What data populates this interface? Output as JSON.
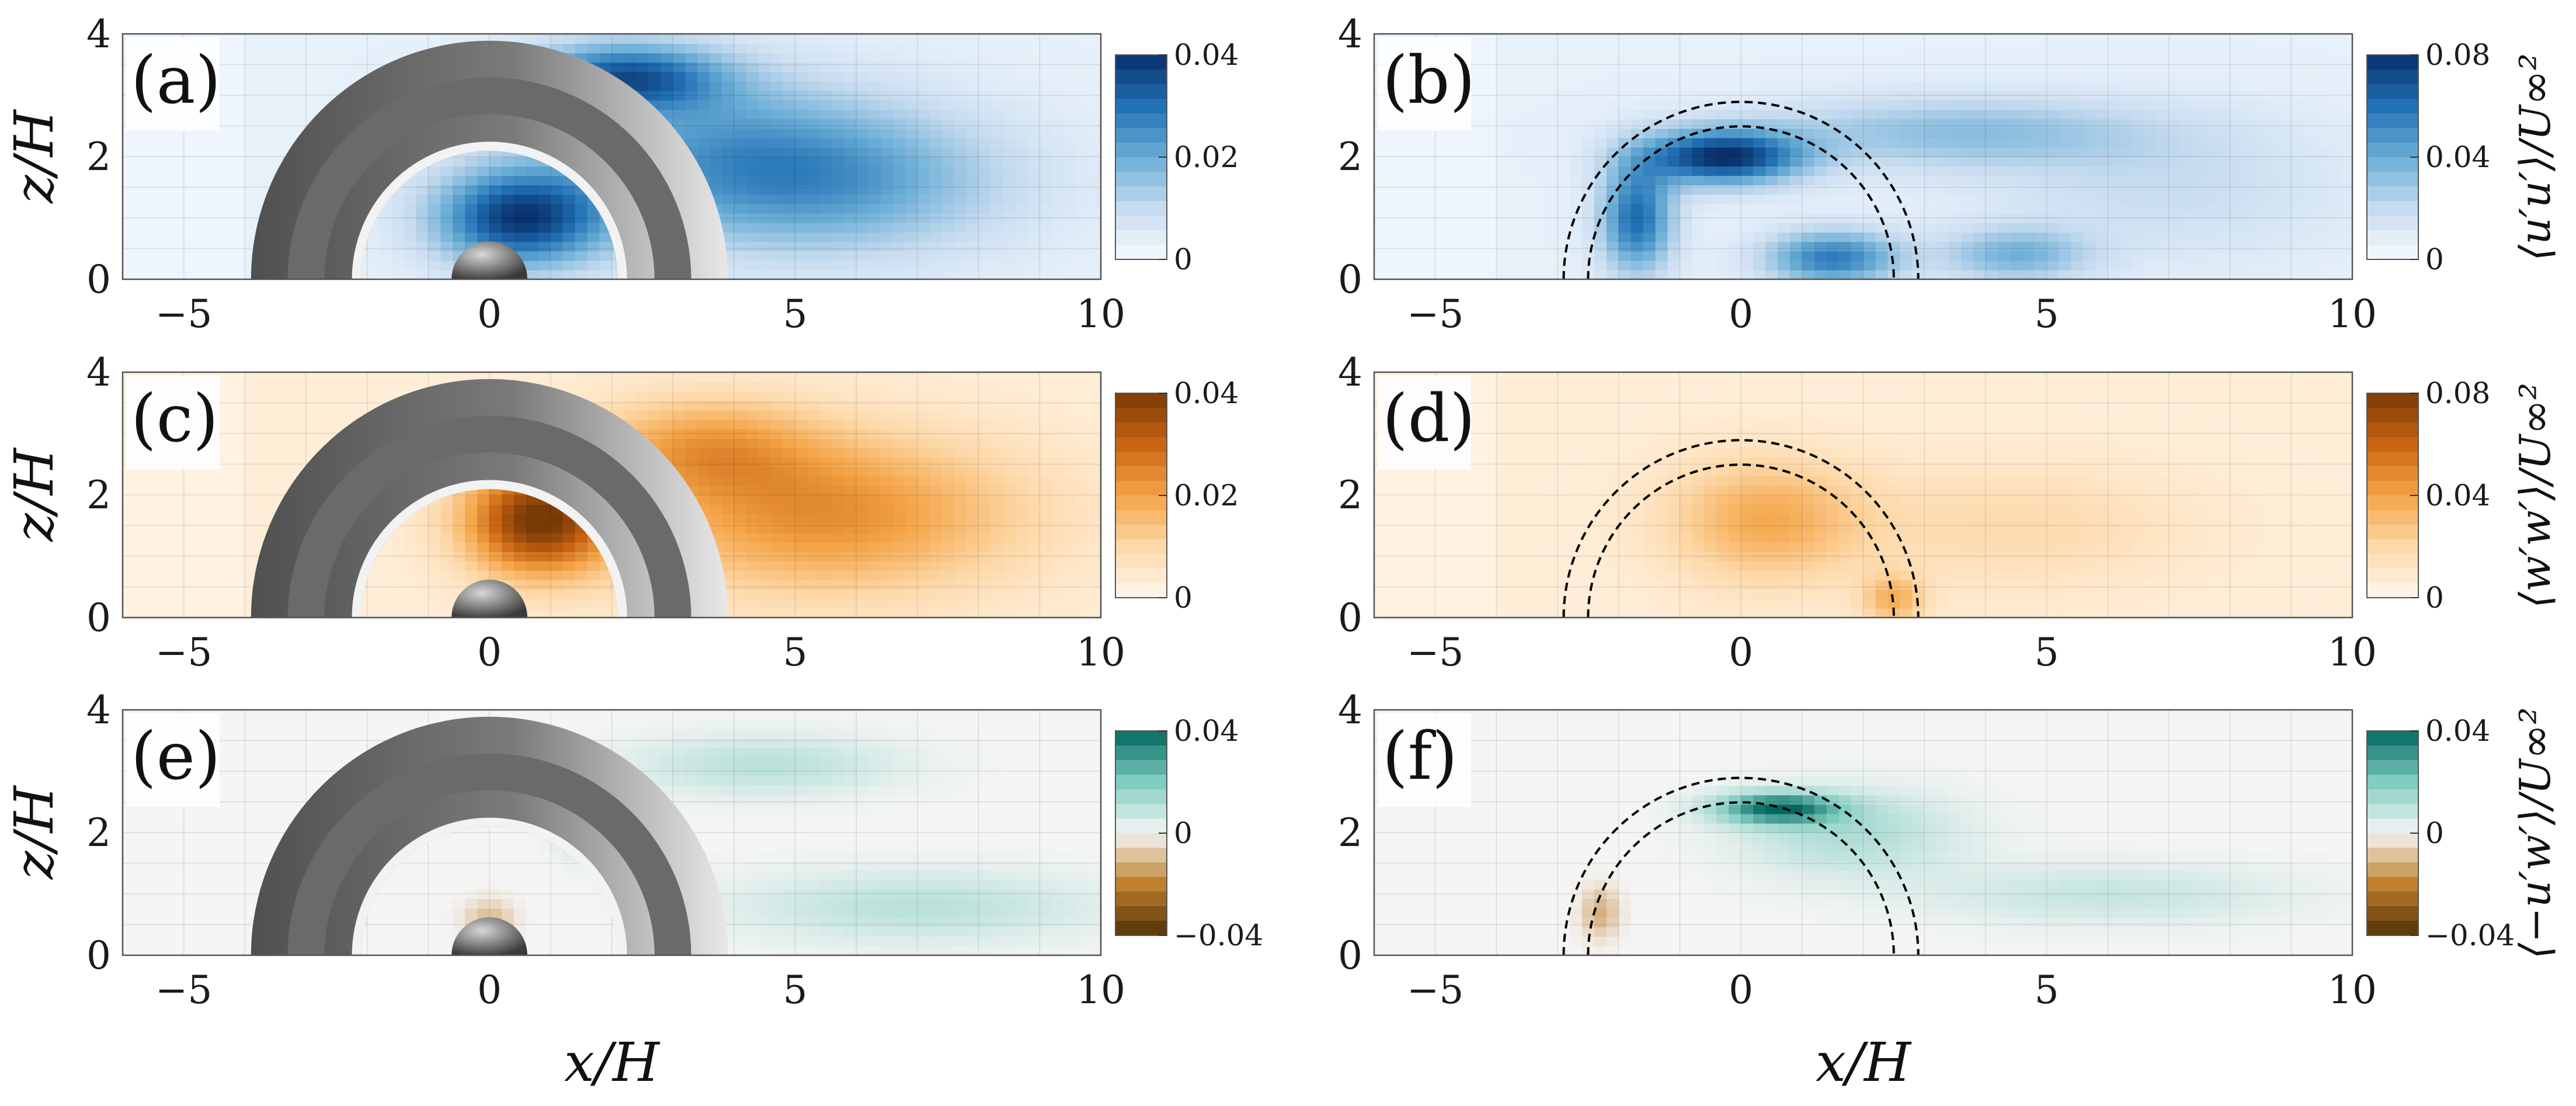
{
  "chart_data": [
    {
      "id": "a",
      "type": "heatmap",
      "panel_label": "(a)",
      "colormap": "blues",
      "model": "rotor",
      "xlim": [
        -6,
        10
      ],
      "ylim": [
        0,
        4
      ],
      "xticks": [
        "−5",
        "0",
        "5",
        "10"
      ],
      "yticks": [
        "0",
        "2",
        "4"
      ],
      "ylabel": "z/H",
      "xlabel": "",
      "colorbar": {
        "ticks": [
          "0.04",
          "0.02",
          "0"
        ],
        "label": ""
      },
      "regions": [
        {
          "cx": 0.5,
          "cz": 1.0,
          "sx": 1.4,
          "sz": 0.8,
          "v": 0.034
        },
        {
          "cx": 2.2,
          "cz": 3.3,
          "sx": 1.6,
          "sz": 0.55,
          "v": 0.028
        },
        {
          "cx": 5.5,
          "cz": 1.6,
          "sx": 3.0,
          "sz": 1.2,
          "v": 0.018
        },
        {
          "cx": 3.5,
          "cz": 2.2,
          "sx": 2.8,
          "sz": 1.3,
          "v": 0.012
        }
      ]
    },
    {
      "id": "b",
      "type": "heatmap",
      "panel_label": "(b)",
      "colormap": "blues",
      "model": "rings",
      "xlim": [
        -6,
        10
      ],
      "ylim": [
        0,
        4
      ],
      "xticks": [
        "−5",
        "0",
        "5",
        "10"
      ],
      "yticks": [
        "0",
        "2",
        "4"
      ],
      "ylabel": "",
      "xlabel": "",
      "colorbar": {
        "ticks": [
          "0.08",
          "0.04",
          "0"
        ],
        "label": "⟨u′u′⟩/U∞²"
      },
      "regions": [
        {
          "cx": -0.3,
          "cz": 2.0,
          "sx": 1.3,
          "sz": 0.45,
          "v": 0.072
        },
        {
          "cx": -1.7,
          "cz": 1.0,
          "sx": 0.6,
          "sz": 0.9,
          "v": 0.055
        },
        {
          "cx": 1.5,
          "cz": 0.35,
          "sx": 1.1,
          "sz": 0.45,
          "v": 0.05
        },
        {
          "cx": 4.5,
          "cz": 0.4,
          "sx": 1.2,
          "sz": 0.45,
          "v": 0.03
        },
        {
          "cx": 3.5,
          "cz": 2.4,
          "sx": 3.2,
          "sz": 0.6,
          "v": 0.025
        },
        {
          "cx": 7.0,
          "cz": 1.5,
          "sx": 3.0,
          "sz": 1.2,
          "v": 0.012
        }
      ]
    },
    {
      "id": "c",
      "type": "heatmap",
      "panel_label": "(c)",
      "colormap": "oranges",
      "model": "rotor",
      "xlim": [
        -6,
        10
      ],
      "ylim": [
        0,
        4
      ],
      "xticks": [
        "−5",
        "0",
        "5",
        "10"
      ],
      "yticks": [
        "0",
        "2",
        "4"
      ],
      "ylabel": "z/H",
      "xlabel": "",
      "colorbar": {
        "ticks": [
          "0.04",
          "0.02",
          "0"
        ],
        "label": ""
      },
      "regions": [
        {
          "cx": 0.8,
          "cz": 1.6,
          "sx": 1.2,
          "sz": 0.9,
          "v": 0.036
        },
        {
          "cx": 5.5,
          "cz": 1.7,
          "sx": 3.2,
          "sz": 1.3,
          "v": 0.02
        },
        {
          "cx": 3.5,
          "cz": 2.8,
          "sx": 1.8,
          "sz": 0.8,
          "v": 0.014
        }
      ]
    },
    {
      "id": "d",
      "type": "heatmap",
      "panel_label": "(d)",
      "colormap": "oranges",
      "model": "rings",
      "xlim": [
        -6,
        10
      ],
      "ylim": [
        0,
        4
      ],
      "xticks": [
        "−5",
        "0",
        "5",
        "10"
      ],
      "yticks": [
        "0",
        "2",
        "4"
      ],
      "ylabel": "",
      "xlabel": "",
      "colorbar": {
        "ticks": [
          "0.08",
          "0.04",
          "0"
        ],
        "label": "⟨w′w′⟩/U∞²"
      },
      "regions": [
        {
          "cx": 0.4,
          "cz": 1.6,
          "sx": 1.6,
          "sz": 1.0,
          "v": 0.03
        },
        {
          "cx": 2.5,
          "cz": 0.3,
          "sx": 0.5,
          "sz": 0.4,
          "v": 0.028
        },
        {
          "cx": 4.5,
          "cz": 1.5,
          "sx": 2.8,
          "sz": 1.0,
          "v": 0.012
        }
      ]
    },
    {
      "id": "e",
      "type": "heatmap",
      "panel_label": "(e)",
      "colormap": "brbg",
      "model": "rotor",
      "xlim": [
        -6,
        10
      ],
      "ylim": [
        0,
        4
      ],
      "xticks": [
        "−5",
        "0",
        "5",
        "10"
      ],
      "yticks": [
        "0",
        "2",
        "4"
      ],
      "ylabel": "z/H",
      "xlabel": "x/H",
      "colorbar": {
        "ticks": [
          "0.04",
          "0",
          "−0.04"
        ],
        "label": ""
      },
      "regions": [
        {
          "cx": 1.8,
          "cz": 2.0,
          "sx": 0.6,
          "sz": 0.4,
          "v": 0.016
        },
        {
          "cx": 4.5,
          "cz": 3.1,
          "sx": 2.2,
          "sz": 0.5,
          "v": 0.01
        },
        {
          "cx": 7.0,
          "cz": 0.8,
          "sx": 3.0,
          "sz": 0.6,
          "v": 0.01
        },
        {
          "cx": 0.0,
          "cz": 0.6,
          "sx": 0.4,
          "sz": 0.3,
          "v": -0.01
        }
      ]
    },
    {
      "id": "f",
      "type": "heatmap",
      "panel_label": "(f)",
      "colormap": "brbg",
      "model": "rings",
      "xlim": [
        -6,
        10
      ],
      "ylim": [
        0,
        4
      ],
      "xticks": [
        "−5",
        "0",
        "5",
        "10"
      ],
      "yticks": [
        "0",
        "2",
        "4"
      ],
      "ylabel": "",
      "xlabel": "x/H",
      "colorbar": {
        "ticks": [
          "0.04",
          "0",
          "−0.04"
        ],
        "label": "⟨−u′w′⟩/U∞²"
      },
      "regions": [
        {
          "cx": 0.6,
          "cz": 2.4,
          "sx": 1.0,
          "sz": 0.25,
          "v": 0.036
        },
        {
          "cx": 1.8,
          "cz": 2.0,
          "sx": 1.8,
          "sz": 0.7,
          "v": 0.012
        },
        {
          "cx": 6.0,
          "cz": 1.0,
          "sx": 3.0,
          "sz": 0.5,
          "v": 0.008
        },
        {
          "cx": -2.3,
          "cz": 0.7,
          "sx": 0.3,
          "sz": 0.4,
          "v": -0.012
        }
      ]
    }
  ],
  "colors": {
    "blues": [
      "#f7fbff",
      "#c6dbef",
      "#6baed6",
      "#2171b5",
      "#08306b"
    ],
    "oranges": [
      "#fff8ef",
      "#fdd8a8",
      "#f4a446",
      "#c86412",
      "#7a3a06"
    ],
    "brbg": [
      "#543005",
      "#bf812d",
      "#f5f5f5",
      "#80cdc1",
      "#01665e"
    ]
  }
}
